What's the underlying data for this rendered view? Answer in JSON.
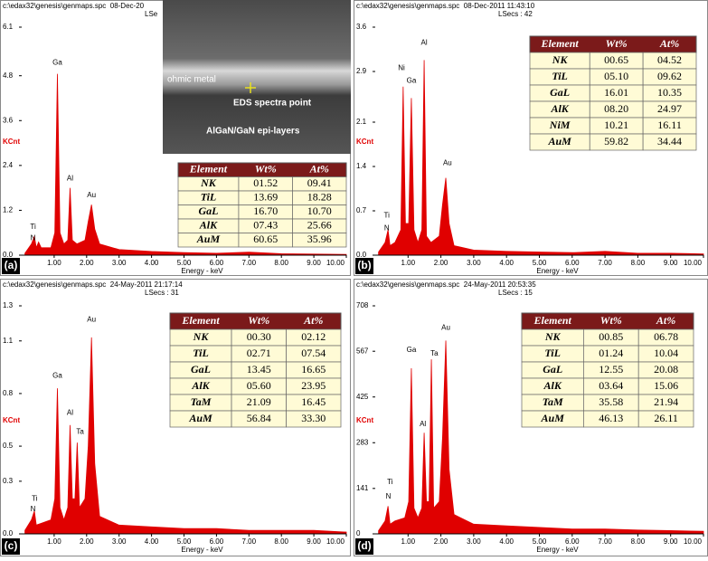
{
  "chart_data": [
    {
      "type": "area",
      "header": "c:\\edax32\\genesis\\genmaps.spc  08-Dec-20",
      "lsecs": "LSe",
      "panel_label": "(a)",
      "y_label": "KCnt",
      "x_label": "Energy - keV",
      "color": "#e00000",
      "xlim": [
        0,
        10
      ],
      "xticks": [
        {
          "value": 1,
          "label": "1.00"
        },
        {
          "value": 2,
          "label": "2.00"
        },
        {
          "value": 3,
          "label": "3.00"
        },
        {
          "value": 4,
          "label": "4.00"
        },
        {
          "value": 5,
          "label": "5.00"
        },
        {
          "value": 6,
          "label": "6.00"
        },
        {
          "value": 7,
          "label": "7.00"
        },
        {
          "value": 8,
          "label": "8.00"
        },
        {
          "value": 9,
          "label": "9.00"
        },
        {
          "value": 10,
          "label": "10.00"
        }
      ],
      "ylim": [
        0,
        6.1
      ],
      "yticks": [
        {
          "value": 0,
          "label": "0.0"
        },
        1.2,
        2.4,
        3.6,
        4.8,
        6.1
      ],
      "x": [
        0.1,
        0.3,
        0.39,
        0.45,
        0.52,
        0.6,
        0.9,
        1.02,
        1.1,
        1.18,
        1.3,
        1.42,
        1.49,
        1.56,
        1.7,
        1.95,
        2.05,
        2.15,
        2.25,
        2.4,
        3,
        4,
        5,
        6,
        7,
        8,
        9,
        10
      ],
      "values": [
        0.05,
        0.3,
        0.5,
        0.2,
        0.35,
        0.2,
        0.2,
        0.6,
        4.85,
        0.6,
        0.3,
        0.4,
        1.8,
        0.4,
        0.3,
        0.4,
        0.9,
        1.35,
        0.7,
        0.3,
        0.15,
        0.1,
        0.07,
        0.05,
        0.08,
        0.04,
        0.03,
        0.02
      ],
      "annotations": [
        "Ti",
        "N",
        "Ga",
        "Al",
        "Au"
      ],
      "inset": {
        "texts": [
          "ohmic metal",
          "EDS spectra point",
          "AlGaN/GaN epi-layers"
        ]
      },
      "table": {
        "columns": [
          "Element",
          "Wt%",
          "At%"
        ],
        "rows": [
          [
            "NK",
            "01.52",
            "09.41"
          ],
          [
            "TiL",
            "13.69",
            "18.28"
          ],
          [
            "GaL",
            "16.70",
            "10.70"
          ],
          [
            "AlK",
            "07.43",
            "25.66"
          ],
          [
            "AuM",
            "60.65",
            "35.96"
          ]
        ]
      }
    },
    {
      "type": "area",
      "header": "c:\\edax32\\genesis\\genmaps.spc  08-Dec-2011 11:43:10",
      "lsecs": "LSecs : 42",
      "panel_label": "(b)",
      "y_label": "KCnt",
      "x_label": "Energy - keV",
      "color": "#e00000",
      "xlim": [
        0,
        10
      ],
      "xticks": [
        {
          "value": 1,
          "label": "1.00"
        },
        {
          "value": 2,
          "label": "2.00"
        },
        {
          "value": 3,
          "label": "3.00"
        },
        {
          "value": 4,
          "label": "4.00"
        },
        {
          "value": 5,
          "label": "5.00"
        },
        {
          "value": 6,
          "label": "6.00"
        },
        {
          "value": 7,
          "label": "7.00"
        },
        {
          "value": 8,
          "label": "8.00"
        },
        {
          "value": 9,
          "label": "9.00"
        },
        {
          "value": 10,
          "label": "10.00"
        }
      ],
      "ylim": [
        0,
        3.6
      ],
      "yticks": [
        {
          "value": 0,
          "label": "0.0"
        },
        0.7,
        1.4,
        2.1,
        2.9,
        3.6
      ],
      "x": [
        0.1,
        0.3,
        0.39,
        0.45,
        0.6,
        0.78,
        0.85,
        0.92,
        1.02,
        1.1,
        1.18,
        1.3,
        1.42,
        1.49,
        1.56,
        1.7,
        1.95,
        2.05,
        2.15,
        2.25,
        2.4,
        3,
        4,
        5,
        6,
        7,
        8,
        9,
        10
      ],
      "values": [
        0.05,
        0.2,
        0.4,
        0.15,
        0.2,
        0.4,
        2.66,
        0.5,
        0.5,
        2.48,
        0.4,
        0.2,
        0.4,
        3.08,
        0.3,
        0.2,
        0.3,
        0.8,
        1.22,
        0.5,
        0.15,
        0.08,
        0.06,
        0.05,
        0.04,
        0.06,
        0.03,
        0.03,
        0.02
      ],
      "annotations": [
        "Ti",
        "N",
        "Ni",
        "Ga",
        "Al",
        "Au"
      ],
      "table": {
        "columns": [
          "Element",
          "Wt%",
          "At%"
        ],
        "rows": [
          [
            "NK",
            "00.65",
            "04.52"
          ],
          [
            "TiL",
            "05.10",
            "09.62"
          ],
          [
            "GaL",
            "16.01",
            "10.35"
          ],
          [
            "AlK",
            "08.20",
            "24.97"
          ],
          [
            "NiM",
            "10.21",
            "16.11"
          ],
          [
            "AuM",
            "59.82",
            "34.44"
          ]
        ]
      }
    },
    {
      "type": "area",
      "header": "c:\\edax32\\genesis\\genmaps.spc  24-May-2011 21:17:14",
      "lsecs": "LSecs : 31",
      "panel_label": "(c)",
      "y_label": "KCnt",
      "x_label": "Energy - keV",
      "color": "#e00000",
      "xlim": [
        0,
        10
      ],
      "xticks": [
        {
          "value": 1,
          "label": "1.00"
        },
        {
          "value": 2,
          "label": "2.00"
        },
        {
          "value": 3,
          "label": "3.00"
        },
        {
          "value": 4,
          "label": "4.00"
        },
        {
          "value": 5,
          "label": "5.00"
        },
        {
          "value": 6,
          "label": "6.00"
        },
        {
          "value": 7,
          "label": "7.00"
        },
        {
          "value": 8,
          "label": "8.00"
        },
        {
          "value": 9,
          "label": "9.00"
        },
        {
          "value": 10,
          "label": "10.00"
        }
      ],
      "ylim": [
        0,
        1.3
      ],
      "yticks": [
        {
          "value": 0,
          "label": "0.0"
        },
        0.3,
        0.5,
        0.8,
        1.1,
        1.3
      ],
      "x": [
        0.1,
        0.3,
        0.39,
        0.45,
        0.6,
        0.9,
        1.02,
        1.1,
        1.18,
        1.3,
        1.42,
        1.49,
        1.56,
        1.64,
        1.71,
        1.78,
        1.95,
        2.05,
        2.15,
        2.25,
        2.4,
        3,
        4,
        5,
        6,
        7,
        8,
        9,
        10
      ],
      "values": [
        0.02,
        0.08,
        0.13,
        0.05,
        0.06,
        0.08,
        0.2,
        0.83,
        0.15,
        0.08,
        0.15,
        0.62,
        0.2,
        0.2,
        0.52,
        0.15,
        0.2,
        0.5,
        1.12,
        0.4,
        0.1,
        0.05,
        0.04,
        0.03,
        0.03,
        0.02,
        0.02,
        0.02,
        0.01
      ],
      "annotations": [
        "Ti",
        "N",
        "Ga",
        "Al",
        "Ta",
        "Au"
      ],
      "table": {
        "columns": [
          "Element",
          "Wt%",
          "At%"
        ],
        "rows": [
          [
            "NK",
            "00.30",
            "02.12"
          ],
          [
            "TiL",
            "02.71",
            "07.54"
          ],
          [
            "GaL",
            "13.45",
            "16.65"
          ],
          [
            "AlK",
            "05.60",
            "23.95"
          ],
          [
            "TaM",
            "21.09",
            "16.45"
          ],
          [
            "AuM",
            "56.84",
            "33.30"
          ]
        ]
      }
    },
    {
      "type": "area",
      "header": "c:\\edax32\\genesis\\genmaps.spc  24-May-2011 20:53:35",
      "lsecs": "LSecs : 15",
      "panel_label": "(d)",
      "y_label": "KCnt",
      "x_label": "Energy - keV",
      "color": "#e00000",
      "xlim": [
        0,
        10
      ],
      "xticks": [
        {
          "value": 1,
          "label": "1.00"
        },
        {
          "value": 2,
          "label": "2.00"
        },
        {
          "value": 3,
          "label": "3.00"
        },
        {
          "value": 4,
          "label": "4.00"
        },
        {
          "value": 5,
          "label": "5.00"
        },
        {
          "value": 6,
          "label": "6.00"
        },
        {
          "value": 7,
          "label": "7.00"
        },
        {
          "value": 8,
          "label": "8.00"
        },
        {
          "value": 9,
          "label": "9.00"
        },
        {
          "value": 10,
          "label": "10.00"
        }
      ],
      "ylim": [
        0,
        708
      ],
      "yticks": [
        0,
        141,
        283,
        425,
        567,
        708
      ],
      "x": [
        0.1,
        0.3,
        0.39,
        0.45,
        0.6,
        0.9,
        1.02,
        1.1,
        1.18,
        1.3,
        1.42,
        1.49,
        1.56,
        1.64,
        1.71,
        1.78,
        1.95,
        2.05,
        2.15,
        2.25,
        2.4,
        3,
        4,
        5,
        6,
        7,
        8,
        9,
        10
      ],
      "values": [
        10,
        40,
        86,
        30,
        40,
        50,
        100,
        514,
        80,
        50,
        80,
        314,
        100,
        100,
        542,
        80,
        100,
        300,
        600,
        200,
        60,
        30,
        25,
        20,
        15,
        15,
        12,
        10,
        8
      ],
      "annotations": [
        "Ti",
        "N",
        "Ga",
        "Al",
        "Ta",
        "Au"
      ],
      "table": {
        "columns": [
          "Element",
          "Wt%",
          "At%"
        ],
        "rows": [
          [
            "NK",
            "00.85",
            "06.78"
          ],
          [
            "TiL",
            "01.24",
            "10.04"
          ],
          [
            "GaL",
            "12.55",
            "20.08"
          ],
          [
            "AlK",
            "03.64",
            "15.06"
          ],
          [
            "TaM",
            "35.58",
            "21.94"
          ],
          [
            "AuM",
            "46.13",
            "26.11"
          ]
        ]
      }
    }
  ]
}
